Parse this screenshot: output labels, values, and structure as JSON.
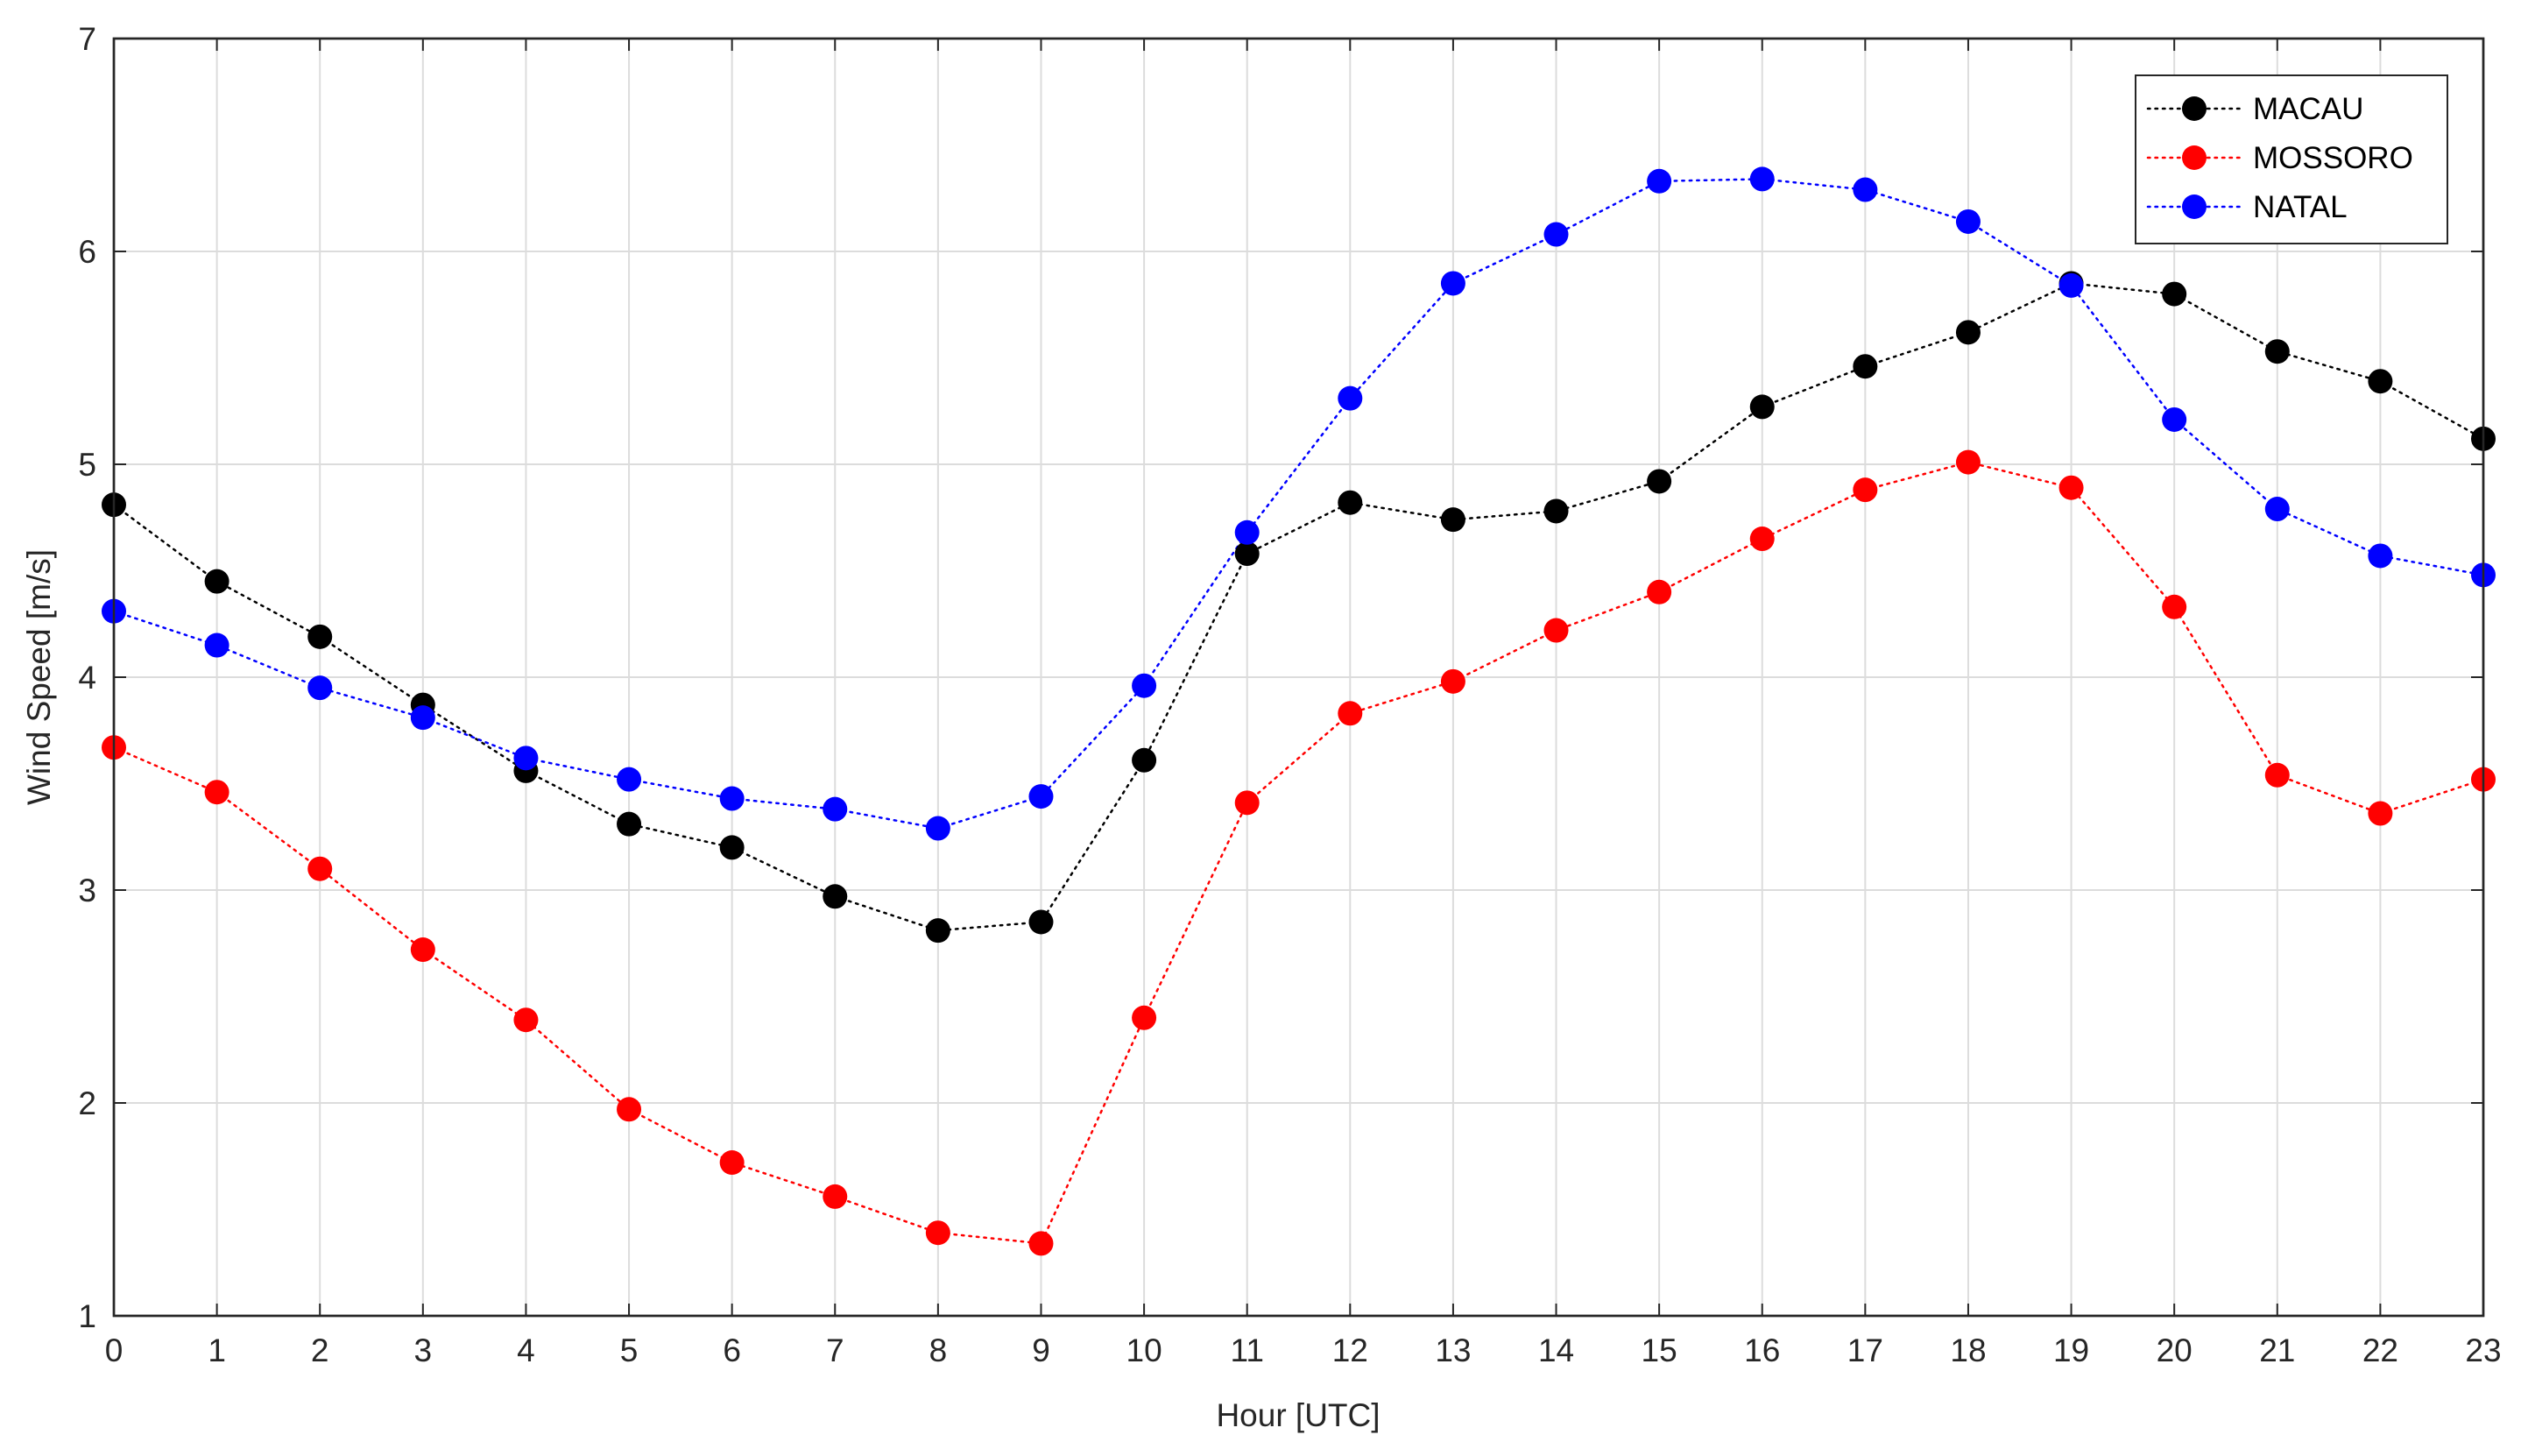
{
  "chart_data": {
    "type": "line",
    "title": "",
    "xlabel": "Hour [UTC]",
    "ylabel": "Wind Speed [m/s]",
    "xlim": [
      0,
      23
    ],
    "ylim": [
      1,
      7
    ],
    "xticks": [
      0,
      1,
      2,
      3,
      4,
      5,
      6,
      7,
      8,
      9,
      10,
      11,
      12,
      13,
      14,
      15,
      16,
      17,
      18,
      19,
      20,
      21,
      22,
      23
    ],
    "yticks": [
      1,
      2,
      3,
      4,
      5,
      6,
      7
    ],
    "grid": true,
    "legend_position": "top-right",
    "x": [
      0,
      1,
      2,
      3,
      4,
      5,
      6,
      7,
      8,
      9,
      10,
      11,
      12,
      13,
      14,
      15,
      16,
      17,
      18,
      19,
      20,
      21,
      22,
      23
    ],
    "series": [
      {
        "name": "MACAU",
        "color": "#000000",
        "line_style": "dotted",
        "marker": "circle",
        "values": [
          4.81,
          4.45,
          4.19,
          3.87,
          3.56,
          3.31,
          3.2,
          2.97,
          2.81,
          2.85,
          3.61,
          4.58,
          4.82,
          4.74,
          4.78,
          4.92,
          5.27,
          5.46,
          5.62,
          5.85,
          5.8,
          5.53,
          5.39,
          5.12
        ]
      },
      {
        "name": "MOSSORO",
        "color": "#ff0000",
        "line_style": "dotted",
        "marker": "circle",
        "values": [
          3.67,
          3.46,
          3.1,
          2.72,
          2.39,
          1.97,
          1.72,
          1.56,
          1.39,
          1.34,
          2.4,
          3.41,
          3.83,
          3.98,
          4.22,
          4.4,
          4.65,
          4.88,
          5.01,
          4.89,
          4.33,
          3.54,
          3.36,
          3.52
        ]
      },
      {
        "name": "NATAL",
        "color": "#0000ff",
        "line_style": "dotted",
        "marker": "circle",
        "values": [
          4.31,
          4.15,
          3.95,
          3.81,
          3.62,
          3.52,
          3.43,
          3.38,
          3.29,
          3.44,
          3.96,
          4.68,
          5.31,
          5.85,
          6.08,
          6.33,
          6.34,
          6.29,
          6.14,
          5.84,
          5.21,
          4.79,
          4.57,
          4.48
        ]
      }
    ]
  }
}
